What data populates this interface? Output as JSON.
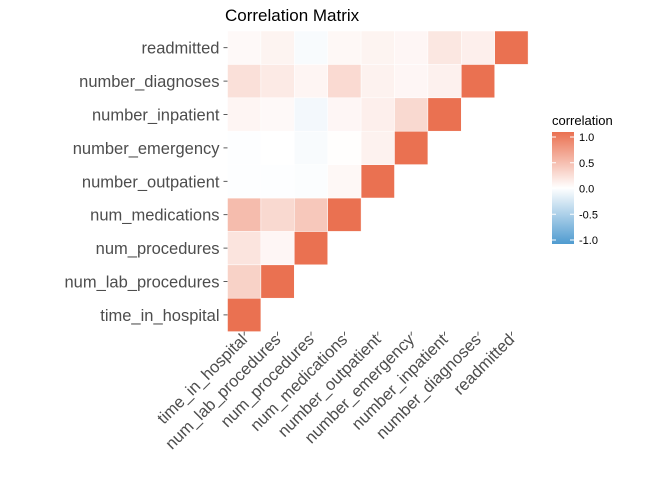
{
  "chart_data": {
    "type": "heatmap",
    "title": "Correlation Matrix",
    "variables": [
      "time_in_hospital",
      "num_lab_procedures",
      "num_procedures",
      "num_medications",
      "number_outpatient",
      "number_emergency",
      "number_inpatient",
      "number_diagnoses",
      "readmitted"
    ],
    "correlations": [
      [
        1.0
      ],
      [
        0.32,
        1.0
      ],
      [
        0.19,
        0.06,
        1.0
      ],
      [
        0.47,
        0.27,
        0.39,
        1.0
      ],
      [
        -0.01,
        -0.01,
        -0.02,
        0.05,
        1.0
      ],
      [
        -0.01,
        0.0,
        -0.04,
        0.01,
        0.09,
        1.0
      ],
      [
        0.07,
        0.04,
        -0.07,
        0.06,
        0.11,
        0.27,
        1.0
      ],
      [
        0.22,
        0.15,
        0.07,
        0.26,
        0.09,
        0.06,
        0.1,
        1.0
      ],
      [
        0.04,
        0.08,
        -0.04,
        0.05,
        0.08,
        0.06,
        0.17,
        0.11,
        1.0
      ]
    ],
    "color_scale": {
      "low": "#4f9bd0",
      "mid": "#ffffff",
      "high": "#ea7151",
      "limits": [
        -1,
        1
      ]
    },
    "legend": {
      "title": "correlation",
      "ticks": [
        1.0,
        0.5,
        0.0,
        -0.5,
        -1.0
      ],
      "tick_labels": [
        "1.0",
        "0.5",
        "0.0",
        "-0.5",
        "-1.0"
      ],
      "position": "right"
    },
    "grid": false
  }
}
